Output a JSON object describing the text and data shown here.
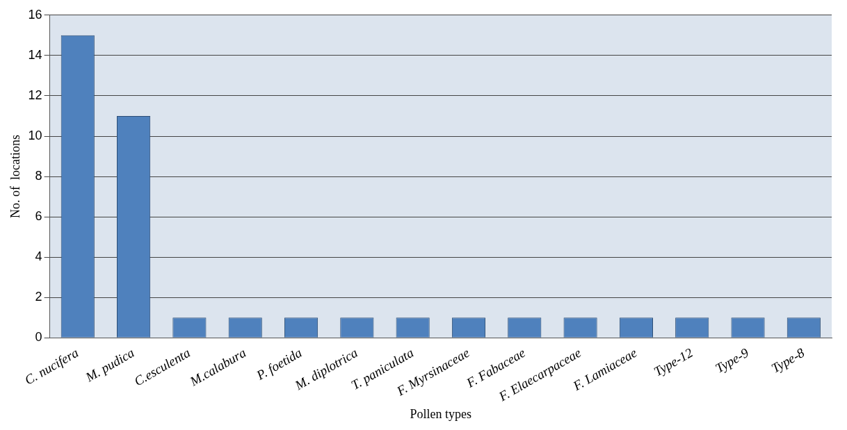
{
  "chart_data": {
    "type": "bar",
    "xlabel": "Pollen types",
    "ylabel": "No. of  locations",
    "categories": [
      "C. nucifera",
      "M. pudica",
      "C.esculenta",
      "M.calabura",
      "P. foetida",
      "M. diplotrica",
      "T. paniculata",
      "F. Myrsinaceae",
      "F. Fabaceae",
      "F. Elaecarpaceae",
      "F. Lamiaceae",
      "Type-12",
      "Type-9",
      "Type-8"
    ],
    "values": [
      15,
      11,
      1,
      1,
      1,
      1,
      1,
      1,
      1,
      1,
      1,
      1,
      1,
      1
    ],
    "color": "#4f81bd",
    "ylim": [
      0,
      16
    ],
    "yticks": [
      0,
      2,
      4,
      6,
      8,
      10,
      12,
      14,
      16
    ],
    "grid": "y",
    "legend": false
  }
}
